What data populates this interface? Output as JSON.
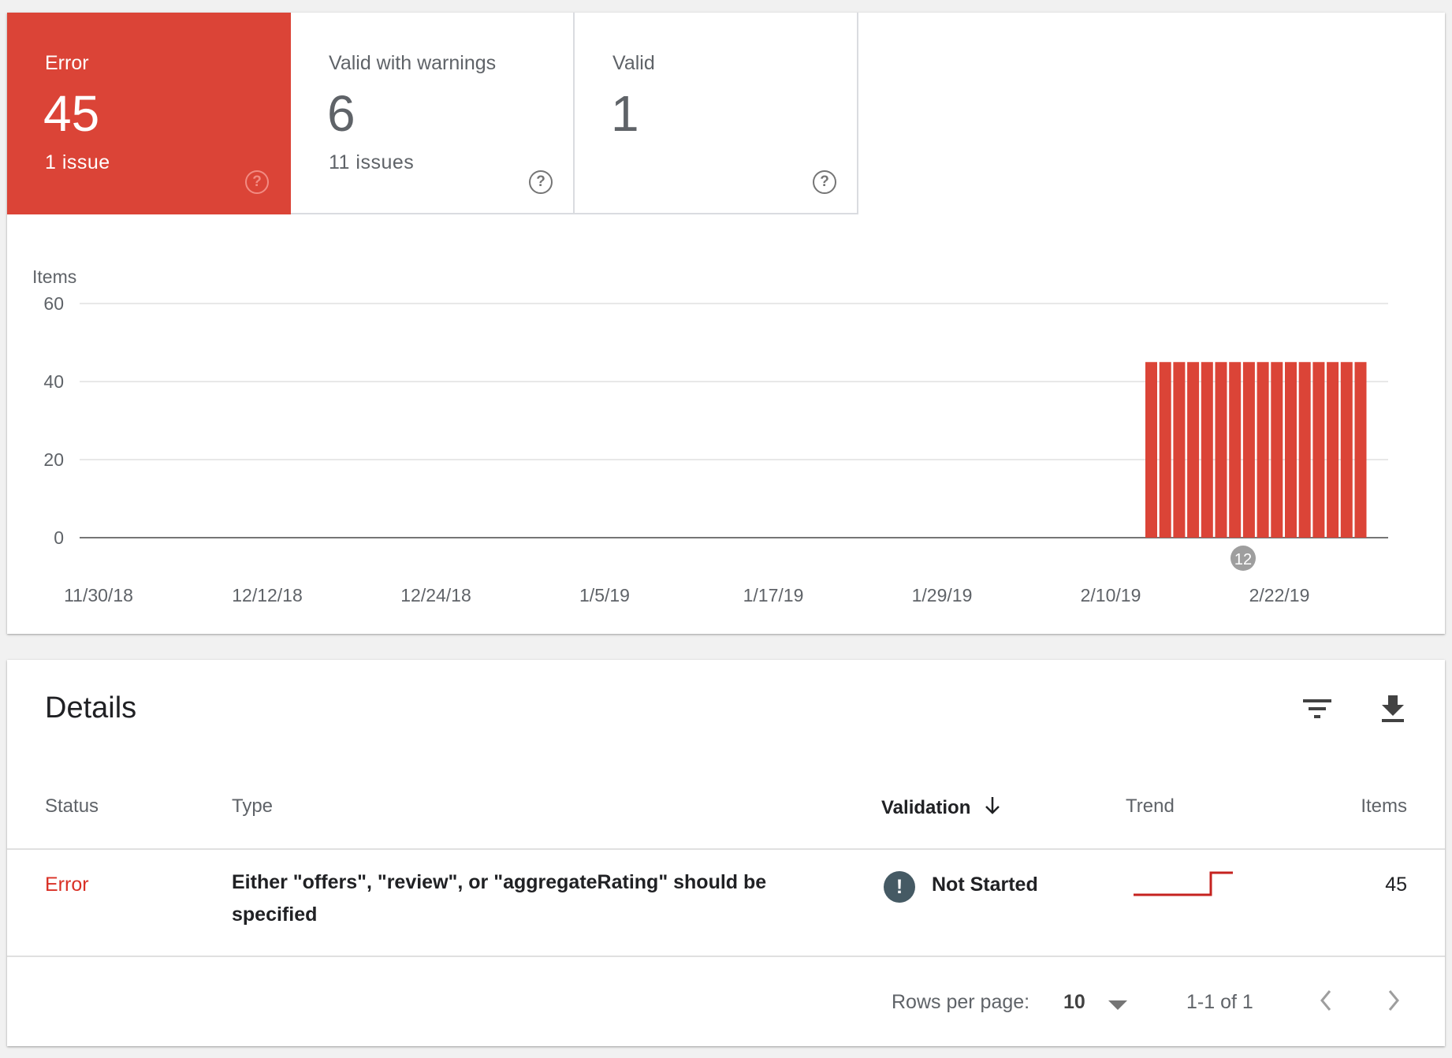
{
  "summary": {
    "error": {
      "label": "Error",
      "count": "45",
      "issues": "1 issue"
    },
    "warnings": {
      "label": "Valid with warnings",
      "count": "6",
      "issues": "11 issues"
    },
    "valid": {
      "label": "Valid",
      "count": "1"
    },
    "help_glyph": "?"
  },
  "chart_data": {
    "type": "bar",
    "ylabel": "Items",
    "ylim": [
      0,
      60
    ],
    "yticks": [
      "60",
      "40",
      "20",
      "0"
    ],
    "xticks": [
      "11/30/18",
      "12/12/18",
      "12/24/18",
      "1/5/19",
      "1/17/19",
      "1/29/19",
      "2/10/19",
      "2/22/19"
    ],
    "series": [
      {
        "color": "#db4437",
        "values": [
          45,
          45,
          45,
          45,
          45,
          45,
          45,
          45,
          45,
          45,
          45,
          45,
          45,
          45,
          45,
          45
        ]
      }
    ],
    "annotation_marker": "12"
  },
  "details": {
    "title": "Details",
    "columns": {
      "status": "Status",
      "type": "Type",
      "validation": "Validation",
      "trend": "Trend",
      "items": "Items"
    },
    "rows": [
      {
        "status": "Error",
        "type": "Either \"offers\", \"review\", or \"aggregateRating\" should be specified",
        "validation_icon": "!",
        "validation": "Not Started",
        "items": "45"
      }
    ],
    "footer": {
      "rows_per_page_label": "Rows per page:",
      "rows_per_page_value": "10",
      "range": "1-1 of 1"
    }
  },
  "colors": {
    "error": "#db4437",
    "validation_icon": "#455a64"
  },
  "icons": [
    "help-icon",
    "filter-icon",
    "download-icon",
    "sort-down-icon",
    "dropdown-icon",
    "chevron-left-icon",
    "chevron-right-icon"
  ]
}
